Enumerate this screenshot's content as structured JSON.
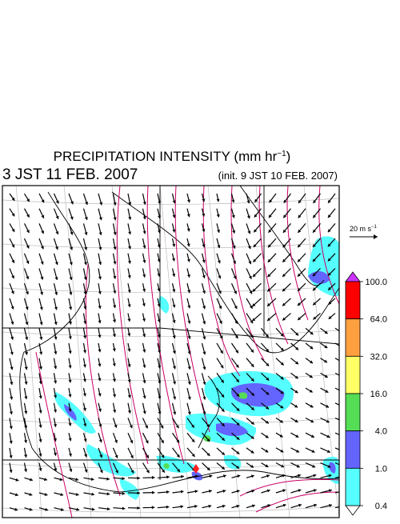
{
  "title": {
    "main": "PRECIPITATION INTENSITY (mm hr",
    "sup": "−1",
    "tail": ")"
  },
  "valid_time": "3 JST 11 FEB. 2007",
  "init_time": "(init. 9 JST 10 FEB. 2007)",
  "reference_vector": {
    "main": "20 m s",
    "sup": "−1"
  },
  "colorbar": {
    "levels": [
      {
        "value": 100,
        "label": "100.0"
      },
      {
        "value": 64,
        "label": "64.0"
      },
      {
        "value": 32,
        "label": "32.0"
      },
      {
        "value": 16,
        "label": "16.0"
      },
      {
        "value": 4,
        "label": "4.0"
      },
      {
        "value": 1,
        "label": "1.0"
      },
      {
        "value": 0.4,
        "label": "0.4"
      }
    ],
    "colors": [
      "#ff0000",
      "#ffa040",
      "#ffff66",
      "#55dd55",
      "#6464ff",
      "#55ffff"
    ],
    "over_color": "#cc33ff",
    "under_color": "#ffffff"
  }
}
